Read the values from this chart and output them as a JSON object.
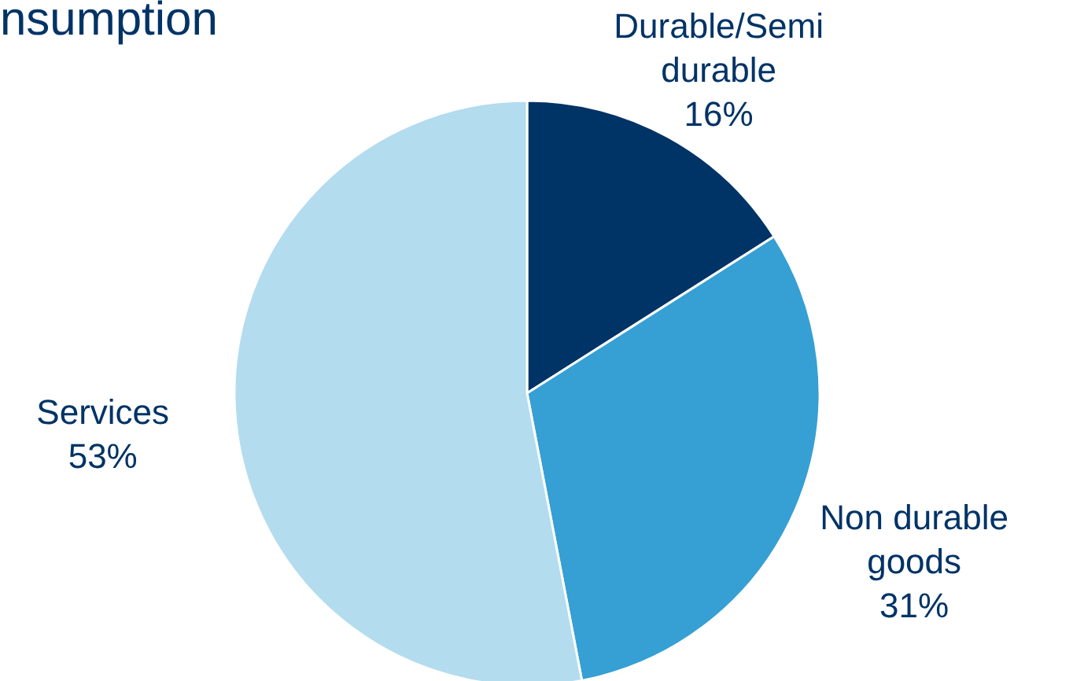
{
  "chart_data": {
    "type": "pie",
    "title": "nsumption",
    "categories": [
      "Durable/Semi durable",
      "Non durable goods",
      "Services"
    ],
    "values": [
      16,
      31,
      53
    ],
    "value_labels": [
      "16%",
      "31%",
      "53%"
    ],
    "colors": [
      "#003366",
      "#369fd4",
      "#b3dcee"
    ],
    "legend": false
  }
}
